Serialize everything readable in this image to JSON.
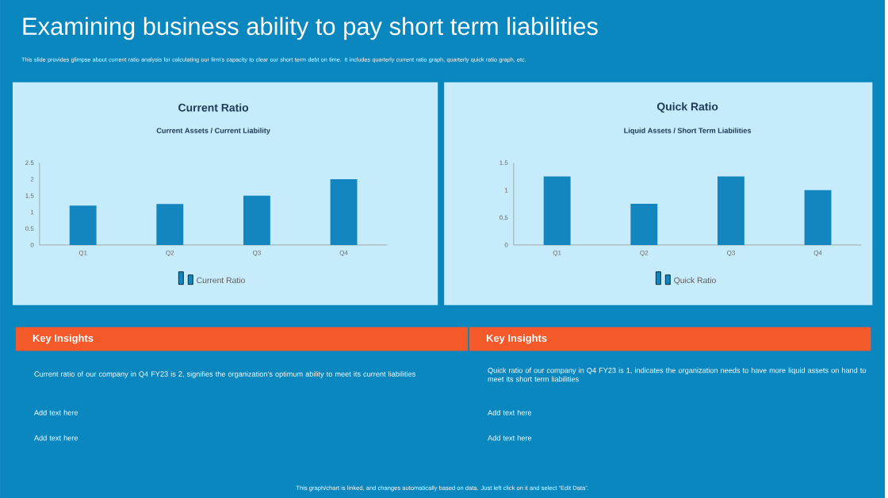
{
  "chart_data": [
    {
      "type": "other",
      "title": "Examining business ability to pay short term liabilities",
      "subtitle": "This slide provides glimpse about current ratio analysis for calculating our firm's capacity to clear our short term debt on time. It includes quarterly current ratio graph, quarterly quick ratio graph, etc.",
      "annotations": [
        "This graph/chart is linked, and changes automatically based on data. Just left click on it and select “Edit Data”."
      ]
    },
    {
      "type": "bar",
      "title": "Current Ratio",
      "subtitle": "Current Assets / Current Liability",
      "categories": [
        "Q1",
        "Q2",
        "Q3",
        "Q4"
      ],
      "series": [
        {
          "name": "Current Ratio",
          "color": "#1486bf",
          "values": [
            1.2,
            1.25,
            1.5,
            2
          ]
        }
      ],
      "ylim": [
        0,
        2.5
      ],
      "yticks": [
        0,
        0.5,
        1,
        1.5,
        2,
        2.5
      ],
      "legend": "bottom"
    },
    {
      "type": "bar",
      "title": "Quick Ratio",
      "subtitle": "Liquid Assets / Short Term Liabilities",
      "categories": [
        "Q1",
        "Q2",
        "Q3",
        "Q4"
      ],
      "series": [
        {
          "name": "Quick Ratio",
          "color": "#1486bf",
          "values": [
            1.25,
            0.75,
            1.25,
            1
          ]
        }
      ],
      "ylim": [
        0,
        1.5
      ],
      "yticks": [
        0,
        0.5,
        1,
        1.5
      ],
      "legend": "bottom"
    },
    {
      "type": "other",
      "title": "Key Insights",
      "annotations": [
        "Current ratio of our company in Q4 FY23 is 2, signifies the organization’s optimum ability to meet its current liabilities",
        "Add text here",
        "Add text here"
      ]
    },
    {
      "type": "other",
      "title": "Key Insights",
      "annotations": [
        "Quick ratio of our company in Q4 FY23 is 1, indicates the organization needs to have more liquid assets on hand to meet its short term liabilities",
        "Add text here",
        "Add text here"
      ]
    }
  ]
}
